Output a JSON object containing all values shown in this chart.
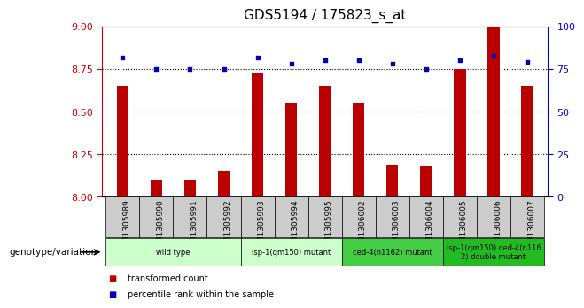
{
  "title": "GDS5194 / 175823_s_at",
  "samples": [
    "GSM1305989",
    "GSM1305990",
    "GSM1305991",
    "GSM1305992",
    "GSM1305993",
    "GSM1305994",
    "GSM1305995",
    "GSM1306002",
    "GSM1306003",
    "GSM1306004",
    "GSM1306005",
    "GSM1306006",
    "GSM1306007"
  ],
  "transformed_count": [
    8.65,
    8.1,
    8.1,
    8.15,
    8.73,
    8.55,
    8.65,
    8.55,
    8.19,
    8.18,
    8.75,
    9.0,
    8.65
  ],
  "percentile_rank": [
    82,
    75,
    75,
    75,
    82,
    78,
    80,
    80,
    78,
    75,
    80,
    83,
    79
  ],
  "ylim_left": [
    8.0,
    9.0
  ],
  "ylim_right": [
    0,
    100
  ],
  "yticks_left": [
    8.0,
    8.25,
    8.5,
    8.75,
    9.0
  ],
  "yticks_right": [
    0,
    25,
    50,
    75,
    100
  ],
  "hlines": [
    8.25,
    8.5,
    8.75
  ],
  "bar_color": "#bb0000",
  "dot_color": "#0000bb",
  "bar_bottom": 8.0,
  "bar_width": 0.35,
  "groups": [
    {
      "label": "wild type",
      "indices": [
        0,
        1,
        2,
        3
      ],
      "color": "#ccffcc"
    },
    {
      "label": "isp-1(qm150) mutant",
      "indices": [
        4,
        5,
        6
      ],
      "color": "#ccffcc"
    },
    {
      "label": "ced-4(n1162) mutant",
      "indices": [
        7,
        8,
        9
      ],
      "color": "#44cc44"
    },
    {
      "label": "isp-1(qm150) ced-4(n116\n2) double mutant",
      "indices": [
        10,
        11,
        12
      ],
      "color": "#22bb22"
    }
  ],
  "tick_label_fontsize": 7,
  "legend_items": [
    {
      "color": "#bb0000",
      "label": "transformed count"
    },
    {
      "color": "#0000bb",
      "label": "percentile rank within the sample"
    }
  ],
  "genotype_label": "genotype/variation",
  "background_color": "#ffffff",
  "plot_bg": "#ffffff",
  "axis_color_left": "#cc0000",
  "axis_color_right": "#0000cc",
  "tick_gray": "#dddddd",
  "title_fontsize": 11
}
